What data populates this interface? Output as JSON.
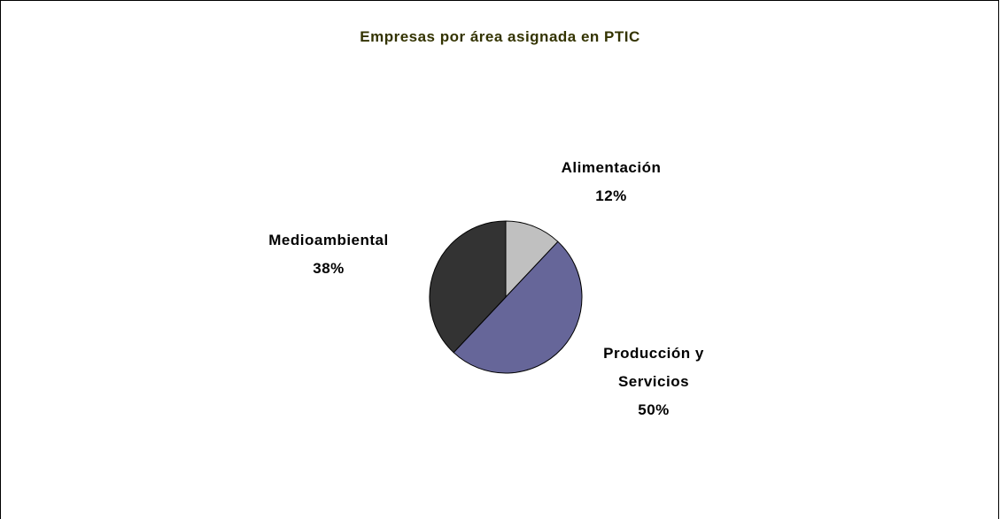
{
  "chart_data": {
    "type": "pie",
    "title": "Empresas por área asignada en PTIC",
    "categories": [
      "Alimentación",
      "Producción y Servicios",
      "Medioambiental"
    ],
    "values": [
      12,
      50,
      38
    ],
    "value_labels": [
      "12%",
      "50%",
      "38%"
    ],
    "colors": [
      "#c0c0c0",
      "#666699",
      "#333333"
    ]
  }
}
